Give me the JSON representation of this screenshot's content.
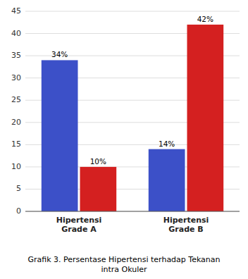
{
  "chart_data": {
    "type": "bar",
    "title": "Grafik 3. Persentase Hipertensi terhadap Tekanan\nintra Okuler",
    "categories": [
      "Hipertensi\nGrade A",
      "Hipertensi\nGrade B"
    ],
    "series": [
      {
        "color": "#3C50C8",
        "values": [
          34,
          14
        ],
        "value_labels": [
          "34%",
          "14%"
        ]
      },
      {
        "color": "#D42020",
        "values": [
          10,
          42
        ],
        "value_labels": [
          "10%",
          "42%"
        ]
      }
    ],
    "ylim": [
      0,
      45
    ],
    "yticks": [
      0,
      5,
      10,
      15,
      20,
      25,
      30,
      35,
      40,
      45
    ],
    "grid": true,
    "data_labels": true
  }
}
